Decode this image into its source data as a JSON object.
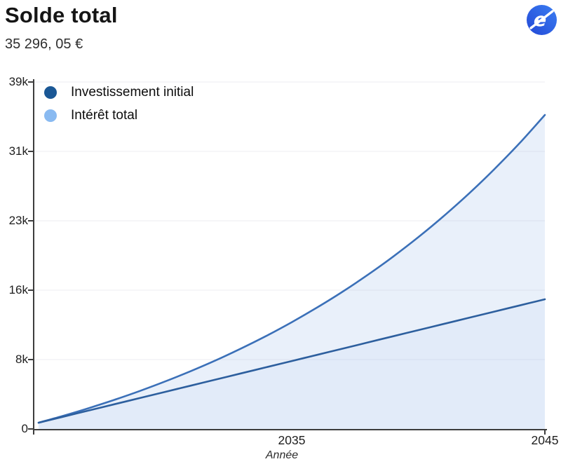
{
  "header": {
    "title": "Solde total",
    "subtitle": "35 296, 05 €"
  },
  "logo": {
    "letter": "e",
    "color_start": "#3b7ef2",
    "color_end": "#2248d6"
  },
  "legend": [
    {
      "label": "Investissement initial",
      "color": "#1a5795"
    },
    {
      "label": "Intérêt total",
      "color": "#89baf1"
    }
  ],
  "chart_data": {
    "type": "area",
    "stacked": true,
    "title": "Solde total",
    "xlabel": "Année",
    "ylabel": "",
    "grid": true,
    "legend_position": "top-left",
    "xlim": [
      2025,
      2045
    ],
    "ylim": [
      0,
      39000
    ],
    "x": [
      2025,
      2026,
      2027,
      2028,
      2029,
      2030,
      2031,
      2032,
      2033,
      2034,
      2035,
      2036,
      2037,
      2038,
      2039,
      2040,
      2041,
      2042,
      2043,
      2044,
      2045
    ],
    "series": [
      {
        "name": "Investissement initial",
        "stroke": "#2d5f9e",
        "fill": "rgba(123,164,226,0.22)",
        "values": [
          700,
          1394,
          2088,
          2781,
          3475,
          4169,
          4863,
          5556,
          6250,
          6944,
          7638,
          8331,
          9025,
          9719,
          10413,
          11106,
          11800,
          12494,
          13188,
          13881,
          14575
        ]
      },
      {
        "name": "Intérêt total",
        "stroke": "#3b70b8",
        "fill": "rgba(123,164,226,0.17)",
        "values": [
          0,
          105,
          269,
          499,
          797,
          1169,
          1622,
          2161,
          2792,
          3522,
          4360,
          5312,
          6387,
          7595,
          8946,
          10451,
          12120,
          13966,
          16003,
          18244,
          20721
        ]
      }
    ],
    "total_final": "35 296, 05 €",
    "y_ticks": [
      {
        "value": 0,
        "label": "0"
      },
      {
        "value": 7800,
        "label": "8k"
      },
      {
        "value": 15600,
        "label": "16k"
      },
      {
        "value": 23400,
        "label": "23k"
      },
      {
        "value": 31200,
        "label": "31k"
      },
      {
        "value": 39000,
        "label": "39k"
      }
    ],
    "x_ticks": [
      {
        "value": 2035,
        "label": "2035"
      },
      {
        "value": 2045,
        "label": "2045"
      }
    ],
    "colors": {
      "grid": "#ededf1",
      "axis": "#3d3d3d"
    }
  }
}
